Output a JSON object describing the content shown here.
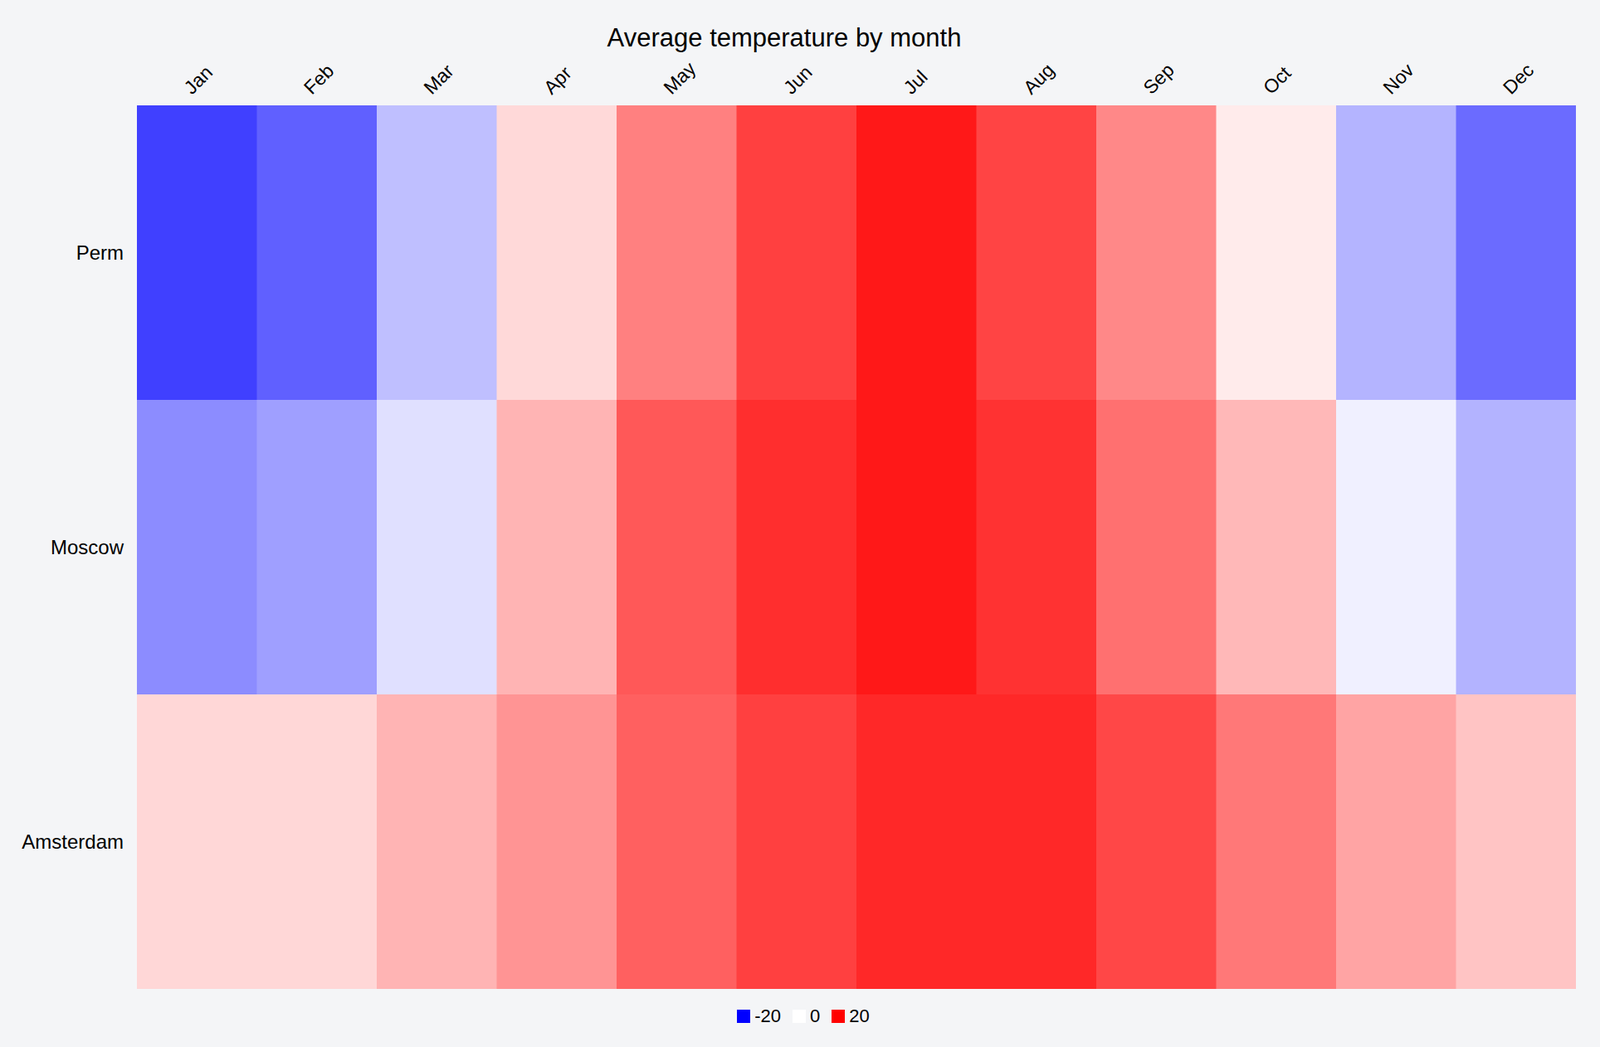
{
  "chart_data": {
    "type": "heatmap",
    "title": "Average temperature by month",
    "categories": [
      "Jan",
      "Feb",
      "Mar",
      "Apr",
      "May",
      "Jun",
      "Jul",
      "Aug",
      "Sep",
      "Oct",
      "Nov",
      "Dec"
    ],
    "rows": [
      "Perm",
      "Moscow",
      "Amsterdam"
    ],
    "values": [
      [
        -15,
        -12.5,
        -5,
        3,
        10,
        15,
        18.1,
        14.7,
        9.3,
        1.6,
        -5.9,
        -11.6
      ],
      [
        -9,
        -7.5,
        -2.4,
        5.9,
        13.1,
        16.4,
        18.1,
        16.1,
        11.2,
        5.6,
        -1.2,
        -6
      ],
      [
        3.1,
        3.1,
        5.9,
        8.4,
        12.5,
        15,
        16.9,
        16.9,
        14.4,
        10.6,
        7.1,
        4.6
      ]
    ],
    "colorbar": {
      "range": [
        -20,
        20
      ],
      "ticks": [
        -20,
        0,
        20
      ],
      "colors": [
        "#0000ff",
        "#ffffff",
        "#ff0000"
      ]
    },
    "legend": "bottom"
  }
}
